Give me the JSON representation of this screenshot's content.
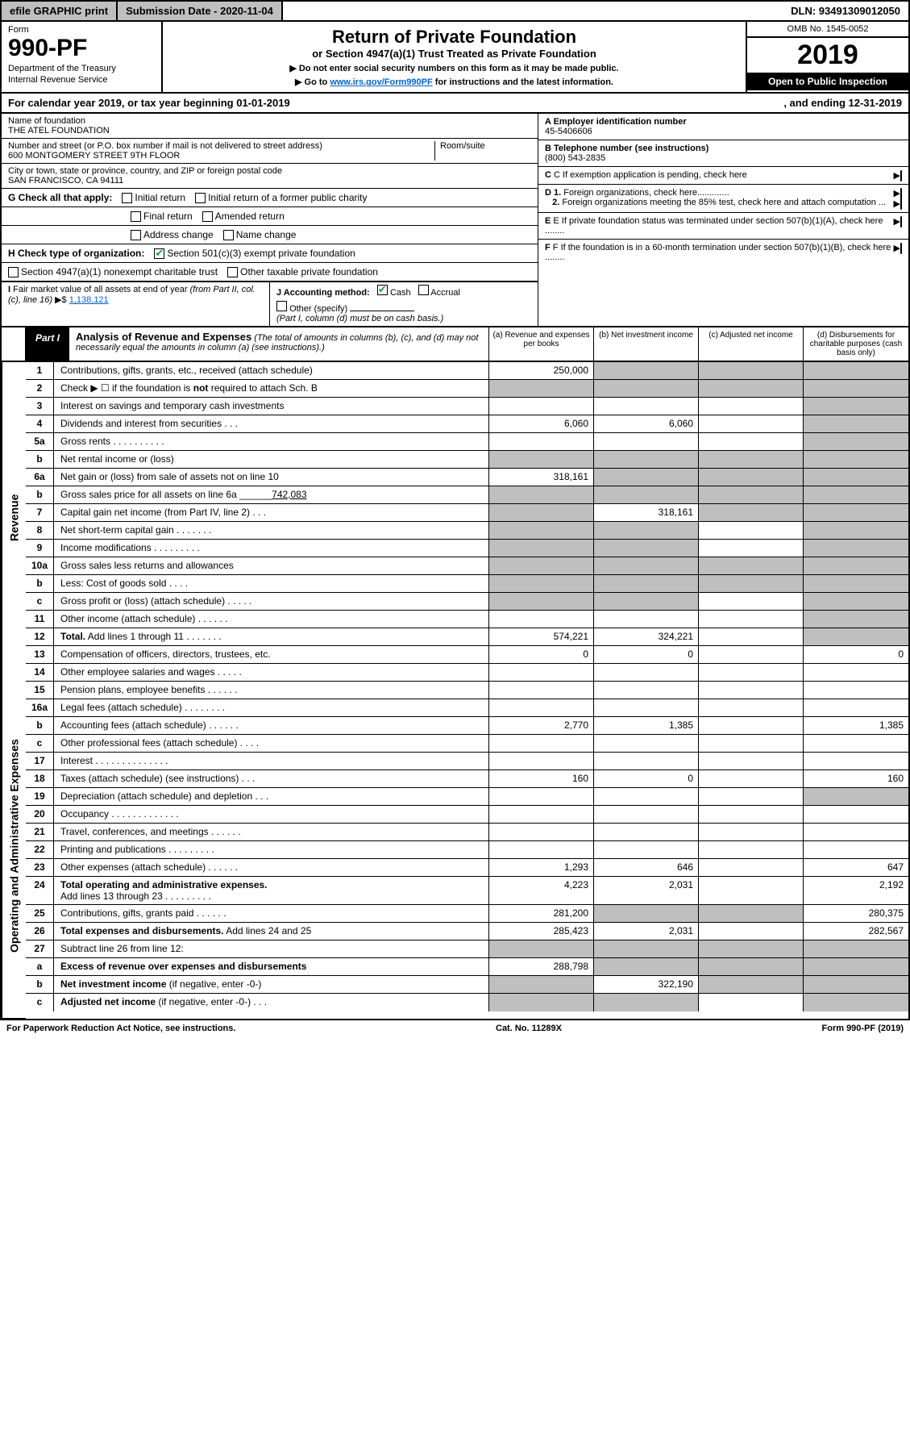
{
  "top": {
    "efile": "efile GRAPHIC print",
    "subdate": "Submission Date - 2020-11-04",
    "dln": "DLN: 93491309012050"
  },
  "header": {
    "form_label": "Form",
    "form_num": "990-PF",
    "dept1": "Department of the Treasury",
    "dept2": "Internal Revenue Service",
    "title": "Return of Private Foundation",
    "subtitle": "or Section 4947(a)(1) Trust Treated as Private Foundation",
    "note1": "▶ Do not enter social security numbers on this form as it may be made public.",
    "note2_pre": "▶ Go to ",
    "note2_link": "www.irs.gov/Form990PF",
    "note2_post": " for instructions and the latest information.",
    "omb": "OMB No. 1545-0052",
    "year": "2019",
    "open": "Open to Public Inspection"
  },
  "calyear": {
    "left": "For calendar year 2019, or tax year beginning 01-01-2019",
    "right": ", and ending 12-31-2019"
  },
  "info": {
    "name_label": "Name of foundation",
    "name": "THE ATEL FOUNDATION",
    "addr_label": "Number and street (or P.O. box number if mail is not delivered to street address)",
    "addr": "600 MONTGOMERY STREET 9TH FLOOR",
    "room_label": "Room/suite",
    "city_label": "City or town, state or province, country, and ZIP or foreign postal code",
    "city": "SAN FRANCISCO, CA  94111",
    "ein_label": "A Employer identification number",
    "ein": "45-5406606",
    "tel_label": "B Telephone number (see instructions)",
    "tel": "(800) 543-2835",
    "c": "C  If exemption application is pending, check here",
    "d1": "D 1. Foreign organizations, check here.............",
    "d2": "2. Foreign organizations meeting the 85% test, check here and attach computation ...",
    "e": "E  If private foundation status was terminated under section 507(b)(1)(A), check here ........",
    "f": "F  If the foundation is in a 60-month termination under section 507(b)(1)(B), check here ........"
  },
  "g": {
    "label": "G Check all that apply:",
    "opts": [
      "Initial return",
      "Initial return of a former public charity",
      "Final return",
      "Amended return",
      "Address change",
      "Name change"
    ]
  },
  "h": {
    "label": "H Check type of organization:",
    "opt1": "Section 501(c)(3) exempt private foundation",
    "opt2": "Section 4947(a)(1) nonexempt charitable trust",
    "opt3": "Other taxable private foundation"
  },
  "i": {
    "label": "I Fair market value of all assets at end of year (from Part II, col. (c), line 16) ▶$ ",
    "val": "1,138,121"
  },
  "j": {
    "label": "J Accounting method:",
    "cash": "Cash",
    "accrual": "Accrual",
    "other": "Other (specify)",
    "note": "(Part I, column (d) must be on cash basis.)"
  },
  "part1": {
    "tag": "Part I",
    "title": "Analysis of Revenue and Expenses",
    "desc": " (The total of amounts in columns (b), (c), and (d) may not necessarily equal the amounts in column (a) (see instructions).)",
    "cols": [
      "(a)   Revenue and expenses per books",
      "(b)   Net investment income",
      "(c)   Adjusted net income",
      "(d)   Disbursements for charitable purposes (cash basis only)"
    ]
  },
  "rows": [
    {
      "n": "1",
      "d": "",
      "a": "250,000",
      "b": "",
      "c": "",
      "sb": true,
      "sc": true,
      "sd": true
    },
    {
      "n": "2",
      "d": "",
      "a": "",
      "b": "",
      "c": "",
      "sa": true,
      "sb": true,
      "sc": true,
      "sd": true
    },
    {
      "n": "3",
      "d": "",
      "a": "",
      "b": "",
      "c": "",
      "sd": true
    },
    {
      "n": "4",
      "d": "",
      "a": "6,060",
      "b": "6,060",
      "c": "",
      "sd": true
    },
    {
      "n": "5a",
      "d": "",
      "a": "",
      "b": "",
      "c": "",
      "sd": true
    },
    {
      "n": "b",
      "d": "",
      "a": "",
      "b": "",
      "c": "",
      "sa": true,
      "sb": true,
      "sc": true,
      "sd": true
    },
    {
      "n": "6a",
      "d": "",
      "a": "318,161",
      "b": "",
      "c": "",
      "sb": true,
      "sc": true,
      "sd": true
    },
    {
      "n": "b",
      "d": "",
      "a": "",
      "b": "",
      "c": "",
      "sa": true,
      "sb": true,
      "sc": true,
      "sd": true
    },
    {
      "n": "7",
      "d": "",
      "a": "",
      "b": "318,161",
      "c": "",
      "sa": true,
      "sc": true,
      "sd": true
    },
    {
      "n": "8",
      "d": "",
      "a": "",
      "b": "",
      "c": "",
      "sa": true,
      "sb": true,
      "sd": true
    },
    {
      "n": "9",
      "d": "",
      "a": "",
      "b": "",
      "c": "",
      "sa": true,
      "sb": true,
      "sd": true
    },
    {
      "n": "10a",
      "d": "",
      "a": "",
      "b": "",
      "c": "",
      "sa": true,
      "sb": true,
      "sc": true,
      "sd": true
    },
    {
      "n": "b",
      "d": "",
      "a": "",
      "b": "",
      "c": "",
      "sa": true,
      "sb": true,
      "sc": true,
      "sd": true
    },
    {
      "n": "c",
      "d": "",
      "a": "",
      "b": "",
      "c": "",
      "sa": true,
      "sb": true,
      "sd": true
    },
    {
      "n": "11",
      "d": "",
      "a": "",
      "b": "",
      "c": "",
      "sd": true
    },
    {
      "n": "12",
      "d": "",
      "a": "574,221",
      "b": "324,221",
      "c": "",
      "sd": true
    },
    {
      "n": "13",
      "d": "0",
      "a": "0",
      "b": "0",
      "c": ""
    },
    {
      "n": "14",
      "d": "",
      "a": "",
      "b": "",
      "c": ""
    },
    {
      "n": "15",
      "d": "",
      "a": "",
      "b": "",
      "c": ""
    },
    {
      "n": "16a",
      "d": "",
      "a": "",
      "b": "",
      "c": ""
    },
    {
      "n": "b",
      "d": "1,385",
      "a": "2,770",
      "b": "1,385",
      "c": ""
    },
    {
      "n": "c",
      "d": "",
      "a": "",
      "b": "",
      "c": ""
    },
    {
      "n": "17",
      "d": "",
      "a": "",
      "b": "",
      "c": ""
    },
    {
      "n": "18",
      "d": "160",
      "a": "160",
      "b": "0",
      "c": ""
    },
    {
      "n": "19",
      "d": "",
      "a": "",
      "b": "",
      "c": "",
      "sd": true
    },
    {
      "n": "20",
      "d": "",
      "a": "",
      "b": "",
      "c": ""
    },
    {
      "n": "21",
      "d": "",
      "a": "",
      "b": "",
      "c": ""
    },
    {
      "n": "22",
      "d": "",
      "a": "",
      "b": "",
      "c": ""
    },
    {
      "n": "23",
      "d": "647",
      "a": "1,293",
      "b": "646",
      "c": ""
    },
    {
      "n": "24",
      "d": "2,192",
      "a": "4,223",
      "b": "2,031",
      "c": ""
    },
    {
      "n": "25",
      "d": "280,375",
      "a": "281,200",
      "b": "",
      "c": "",
      "sb": true,
      "sc": true
    },
    {
      "n": "26",
      "d": "282,567",
      "a": "285,423",
      "b": "2,031",
      "c": ""
    },
    {
      "n": "27",
      "d": "",
      "a": "",
      "b": "",
      "c": "",
      "sa": true,
      "sb": true,
      "sc": true,
      "sd": true
    },
    {
      "n": "a",
      "d": "",
      "a": "288,798",
      "b": "",
      "c": "",
      "sb": true,
      "sc": true,
      "sd": true
    },
    {
      "n": "b",
      "d": "",
      "a": "",
      "b": "322,190",
      "c": "",
      "sa": true,
      "sc": true,
      "sd": true
    },
    {
      "n": "c",
      "d": "",
      "a": "",
      "b": "",
      "c": "",
      "sa": true,
      "sb": true,
      "sd": true
    }
  ],
  "footer": {
    "left": "For Paperwork Reduction Act Notice, see instructions.",
    "mid": "Cat. No. 11289X",
    "right": "Form 990-PF (2019)"
  },
  "vlabels": {
    "rev": "Revenue",
    "exp": "Operating and Administrative Expenses"
  }
}
